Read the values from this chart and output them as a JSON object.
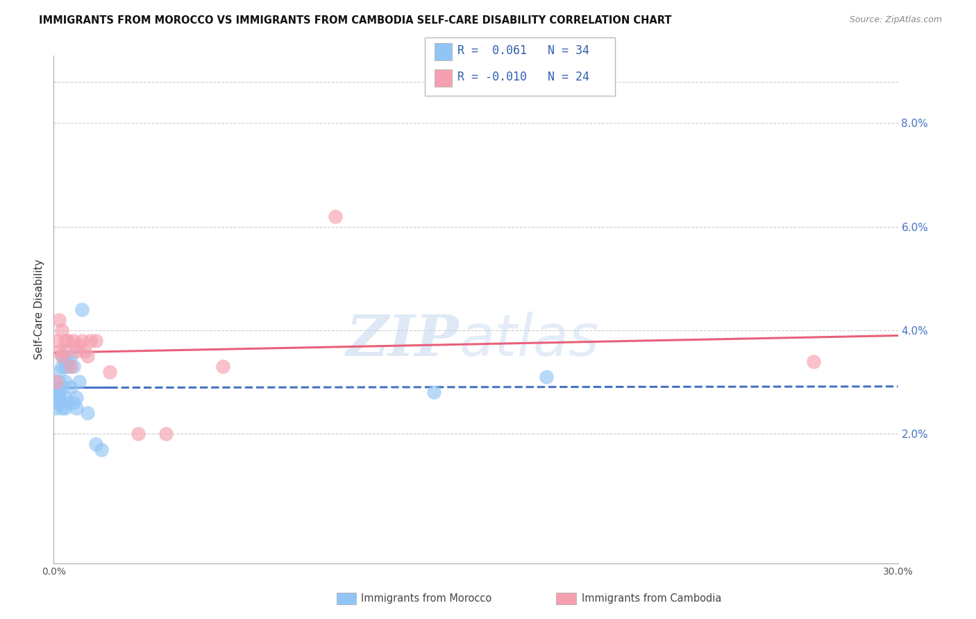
{
  "title": "IMMIGRANTS FROM MOROCCO VS IMMIGRANTS FROM CAMBODIA SELF-CARE DISABILITY CORRELATION CHART",
  "source": "Source: ZipAtlas.com",
  "ylabel": "Self-Care Disability",
  "ytick_labels": [
    "2.0%",
    "4.0%",
    "6.0%",
    "8.0%"
  ],
  "ytick_values": [
    0.02,
    0.04,
    0.06,
    0.08
  ],
  "xlim": [
    0.0,
    0.3
  ],
  "ylim": [
    -0.005,
    0.093
  ],
  "morocco_color": "#92c5f5",
  "cambodia_color": "#f5a0b0",
  "morocco_line_color": "#4472c4",
  "cambodia_line_color": "#e8607a",
  "morocco_label": "Immigrants from Morocco",
  "cambodia_label": "Immigrants from Cambodia",
  "morocco_x": [
    0.001,
    0.001,
    0.001,
    0.001,
    0.002,
    0.002,
    0.002,
    0.002,
    0.002,
    0.003,
    0.003,
    0.003,
    0.003,
    0.004,
    0.004,
    0.004,
    0.004,
    0.004,
    0.005,
    0.005,
    0.005,
    0.006,
    0.006,
    0.007,
    0.007,
    0.008,
    0.008,
    0.009,
    0.01,
    0.012,
    0.015,
    0.017,
    0.135,
    0.175
  ],
  "morocco_y": [
    0.027,
    0.028,
    0.029,
    0.025,
    0.026,
    0.03,
    0.028,
    0.032,
    0.027,
    0.033,
    0.035,
    0.029,
    0.025,
    0.034,
    0.033,
    0.03,
    0.027,
    0.025,
    0.034,
    0.033,
    0.026,
    0.035,
    0.029,
    0.033,
    0.026,
    0.025,
    0.027,
    0.03,
    0.044,
    0.024,
    0.018,
    0.017,
    0.028,
    0.031
  ],
  "cambodia_x": [
    0.001,
    0.001,
    0.002,
    0.002,
    0.003,
    0.003,
    0.004,
    0.004,
    0.005,
    0.006,
    0.007,
    0.008,
    0.009,
    0.01,
    0.011,
    0.012,
    0.013,
    0.015,
    0.02,
    0.03,
    0.04,
    0.06,
    0.1,
    0.27
  ],
  "cambodia_y": [
    0.03,
    0.038,
    0.036,
    0.042,
    0.035,
    0.04,
    0.038,
    0.036,
    0.038,
    0.033,
    0.038,
    0.036,
    0.037,
    0.038,
    0.036,
    0.035,
    0.038,
    0.038,
    0.032,
    0.02,
    0.02,
    0.033,
    0.062,
    0.034
  ],
  "watermark_zip": "ZIP",
  "watermark_atlas": "atlas",
  "background_color": "#ffffff",
  "grid_color": "#cccccc",
  "legend_R_morocco": "R =  0.061",
  "legend_N_morocco": "N = 34",
  "legend_R_cambodia": "R = -0.010",
  "legend_N_cambodia": "N = 24"
}
